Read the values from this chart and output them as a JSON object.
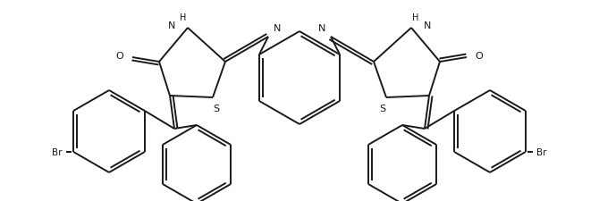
{
  "bg_color": "#ffffff",
  "line_color": "#1a1a1a",
  "line_width": 1.4,
  "figsize": [
    6.7,
    2.26
  ],
  "dpi": 100,
  "xlim": [
    0,
    670
  ],
  "ylim": [
    0,
    226
  ]
}
